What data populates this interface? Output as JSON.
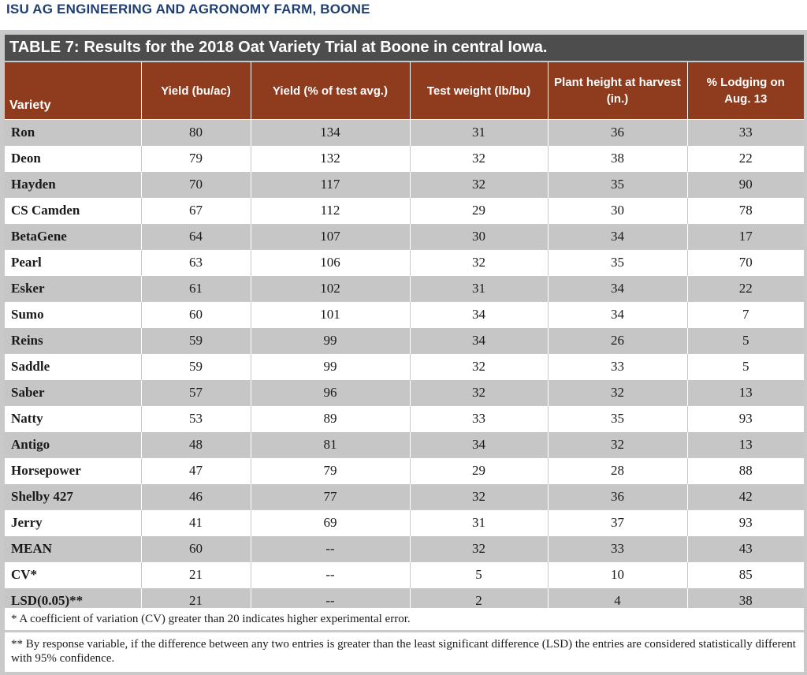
{
  "header": {
    "title": "ISU AG ENGINEERING AND AGRONOMY FARM, BOONE"
  },
  "table": {
    "label": "TABLE 7:",
    "title": "Results for the 2018 Oat Variety Trial at Boone in central Iowa.",
    "columns": [
      "Variety",
      "Yield (bu/ac)",
      "Yield (% of test avg.)",
      "Test weight (lb/bu)",
      "Plant height at harvest (in.)",
      "% Lodging on Aug. 13"
    ],
    "rows": [
      [
        "Ron",
        "80",
        "134",
        "31",
        "36",
        "33"
      ],
      [
        "Deon",
        "79",
        "132",
        "32",
        "38",
        "22"
      ],
      [
        "Hayden",
        "70",
        "117",
        "32",
        "35",
        "90"
      ],
      [
        "CS Camden",
        "67",
        "112",
        "29",
        "30",
        "78"
      ],
      [
        "BetaGene",
        "64",
        "107",
        "30",
        "34",
        "17"
      ],
      [
        "Pearl",
        "63",
        "106",
        "32",
        "35",
        "70"
      ],
      [
        "Esker",
        "61",
        "102",
        "31",
        "34",
        "22"
      ],
      [
        "Sumo",
        "60",
        "101",
        "34",
        "34",
        "7"
      ],
      [
        "Reins",
        "59",
        "99",
        "34",
        "26",
        "5"
      ],
      [
        "Saddle",
        "59",
        "99",
        "32",
        "33",
        "5"
      ],
      [
        "Saber",
        "57",
        "96",
        "32",
        "32",
        "13"
      ],
      [
        "Natty",
        "53",
        "89",
        "33",
        "35",
        "93"
      ],
      [
        "Antigo",
        "48",
        "81",
        "34",
        "32",
        "13"
      ],
      [
        "Horsepower",
        "47",
        "79",
        "29",
        "28",
        "88"
      ],
      [
        "Shelby 427",
        "46",
        "77",
        "32",
        "36",
        "42"
      ],
      [
        "Jerry",
        "41",
        "69",
        "31",
        "37",
        "93"
      ],
      [
        "MEAN",
        "60",
        "--",
        "32",
        "33",
        "43"
      ],
      [
        "CV*",
        "21",
        "--",
        "5",
        "10",
        "85"
      ],
      [
        "LSD(0.05)**",
        "21",
        "--",
        "2",
        "4",
        "38"
      ]
    ]
  },
  "footnotes": {
    "cv": "* A coefficient of variation (CV) greater than 20 indicates higher experimental error.",
    "lsd": "** By response variable, if the difference between any two entries is greater than the least significant difference (LSD) the entries are considered statistically different with 95% confidence."
  },
  "colors": {
    "header_text": "#1f3f72",
    "title_bar": "#4d4d4d",
    "column_header": "#8f3b1e",
    "row_shade": "#c6c6c6",
    "row_plain": "#ffffff"
  }
}
